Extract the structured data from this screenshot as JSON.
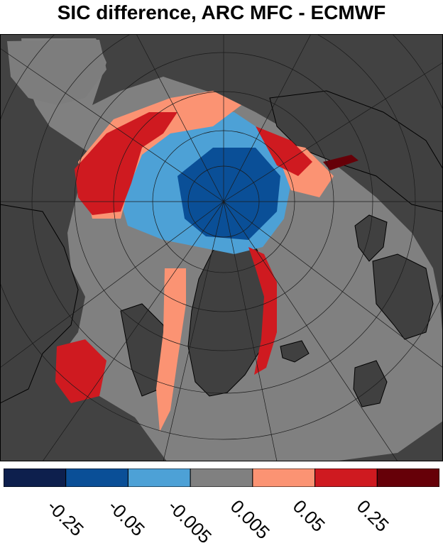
{
  "title": "SIC difference, ARC MFC - ECMWF",
  "colorbar": {
    "colors": [
      "#0d1f4d",
      "#0a4f97",
      "#4da1d6",
      "#808080",
      "#fb9373",
      "#cf1a20",
      "#660008"
    ],
    "tick_labels": [
      "-0.25",
      "-0.05",
      "-0.005",
      "0.005",
      "0.05",
      "0.25"
    ]
  },
  "map_colors": {
    "background": "#424242",
    "land": "#404040",
    "ocean_no_ice": "#808080",
    "grid": "#1a1a1a"
  }
}
